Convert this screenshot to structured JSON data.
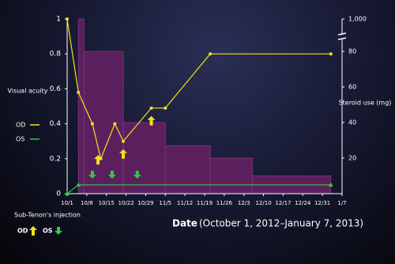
{
  "chart_data": {
    "type": "combo",
    "ylabel": "Visual acuity",
    "y2label": "Steroid use (mg)",
    "xlabel": "Date",
    "xlabel_note": "(October 1, 2012–January 7, 2013)",
    "xlim": [
      0,
      98
    ],
    "xticks": [
      {
        "value": 0,
        "label": "10/1"
      },
      {
        "value": 7,
        "label": "10/8"
      },
      {
        "value": 14,
        "label": "10/15"
      },
      {
        "value": 21,
        "label": "10/22"
      },
      {
        "value": 28,
        "label": "10/29"
      },
      {
        "value": 35,
        "label": "11/5"
      },
      {
        "value": 42,
        "label": "11/12"
      },
      {
        "value": 49,
        "label": "11/19"
      },
      {
        "value": 56,
        "label": "11/26"
      },
      {
        "value": 63,
        "label": "12/3"
      },
      {
        "value": 70,
        "label": "12/10"
      },
      {
        "value": 77,
        "label": "12/17"
      },
      {
        "value": 84,
        "label": "12/24"
      },
      {
        "value": 91,
        "label": "12/31"
      },
      {
        "value": 98,
        "label": "1/7"
      }
    ],
    "ylim": [
      0,
      1
    ],
    "yticks": [
      0,
      0.2,
      0.4,
      0.6,
      0.8,
      1
    ],
    "y2lim": [
      0,
      1000
    ],
    "y2ticks": [
      20,
      40,
      60,
      80,
      {
        "value": 1000,
        "label": "1,000"
      }
    ],
    "y2_break": true,
    "steroid": {
      "color": "#5c1f5e",
      "bins": [
        4,
        6,
        20,
        35,
        51,
        66,
        94
      ],
      "values": [
        1000,
        80,
        40,
        27,
        20,
        10
      ]
    },
    "series": [
      {
        "name": "OD",
        "color": "#f2e21c",
        "x": [
          0,
          4,
          9,
          12,
          17,
          20,
          30,
          35,
          51,
          94
        ],
        "values": [
          1,
          0.58,
          0.4,
          0.2,
          0.4,
          0.3,
          0.49,
          0.49,
          0.8,
          0.8
        ]
      },
      {
        "name": "OS",
        "color": "#2ecc40",
        "x": [
          0,
          4,
          94
        ],
        "values": [
          0,
          0.05,
          0.05
        ]
      }
    ],
    "injection_title": "Sub-Tenon's injection",
    "injections": [
      {
        "name": "OD",
        "color": "#f2e21c",
        "x": [
          11,
          20,
          30
        ]
      },
      {
        "name": "OS",
        "color": "#2ecc40",
        "x": [
          9,
          16,
          25
        ]
      }
    ]
  }
}
